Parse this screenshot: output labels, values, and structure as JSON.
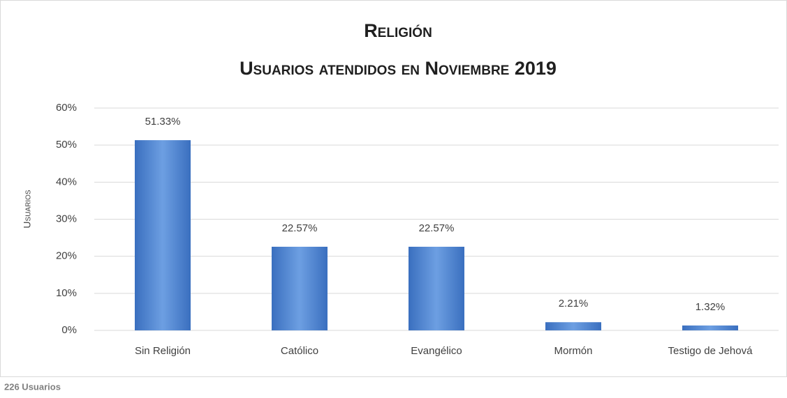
{
  "chart_data": {
    "type": "bar",
    "title": "Religión",
    "subtitle": "Usuarios atendidos en Noviembre 2019",
    "y_label": "Usuarios",
    "footnote": "226 Usuarios",
    "categories": [
      "Sin Religión",
      "Católico",
      "Evangélico",
      "Mormón",
      "Testigo de Jehová"
    ],
    "values": [
      51.33,
      22.57,
      22.57,
      2.21,
      1.32
    ],
    "value_labels": [
      "51.33%",
      "22.57%",
      "22.57%",
      "2.21%",
      "1.32%"
    ],
    "color": "#6d9fe2",
    "ylim": [
      0,
      60
    ],
    "yticks": [
      {
        "value": 0,
        "label": "0%"
      },
      {
        "value": 10,
        "label": "10%"
      },
      {
        "value": 20,
        "label": "20%"
      },
      {
        "value": 30,
        "label": "30%"
      },
      {
        "value": 40,
        "label": "40%"
      },
      {
        "value": 50,
        "label": "50%"
      },
      {
        "value": 60,
        "label": "60%"
      }
    ],
    "grid": true
  }
}
